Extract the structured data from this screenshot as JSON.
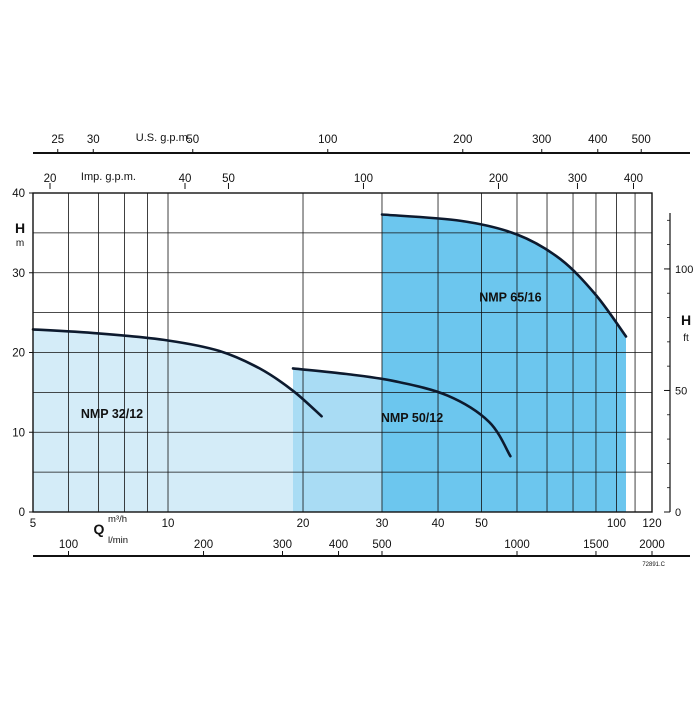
{
  "chart_data": {
    "type": "area",
    "title": "",
    "axes": {
      "x_primary": {
        "unit_symbol": "Q",
        "unit": "m³/h",
        "scale": "log",
        "range": [
          5,
          120
        ],
        "ticks": [
          "5",
          "10",
          "20",
          "30",
          "40",
          "50",
          "100",
          "120"
        ]
      },
      "x_lmin": {
        "unit": "l/min",
        "ticks": [
          "100",
          "200",
          "300",
          "400",
          "500",
          "1000",
          "1500",
          "2000"
        ]
      },
      "x_usgpm": {
        "label": "U.S. g.p.m.",
        "ticks": [
          "25",
          "30",
          "50",
          "100",
          "200",
          "300",
          "400",
          "500"
        ]
      },
      "x_impgpm": {
        "label": "Imp. g.p.m.",
        "ticks": [
          "20",
          "40",
          "50",
          "100",
          "200",
          "300",
          "400"
        ]
      },
      "y_m": {
        "symbol": "H",
        "unit": "m",
        "range": [
          0,
          40
        ],
        "ticks": [
          "0",
          "10",
          "20",
          "30",
          "40"
        ]
      },
      "y_ft": {
        "symbol": "H",
        "unit": "ft",
        "ticks": [
          "0",
          "50",
          "100"
        ]
      }
    },
    "series": [
      {
        "name": "NMP 32/12",
        "color": "#d4ecf8",
        "points": [
          [
            5,
            22.9
          ],
          [
            7,
            22.4
          ],
          [
            10,
            21.5
          ],
          [
            13,
            20.2
          ],
          [
            16,
            18.0
          ],
          [
            19,
            15.2
          ],
          [
            22,
            12.0
          ],
          [
            22,
            0
          ]
        ]
      },
      {
        "name": "NMP 50/12",
        "color": "#a9dcf4",
        "points": [
          [
            19,
            18.0
          ],
          [
            25,
            17.3
          ],
          [
            32,
            16.4
          ],
          [
            42,
            14.6
          ],
          [
            52,
            11.3
          ],
          [
            58,
            7.0
          ],
          [
            58,
            0
          ]
        ]
      },
      {
        "name": "NMP 65/16",
        "color": "#6cc6ee",
        "points": [
          [
            30,
            37.3
          ],
          [
            45,
            36.5
          ],
          [
            60,
            34.8
          ],
          [
            75,
            31.7
          ],
          [
            90,
            27.2
          ],
          [
            105,
            22.0
          ],
          [
            105,
            0
          ]
        ]
      }
    ],
    "code": "72891.C"
  }
}
